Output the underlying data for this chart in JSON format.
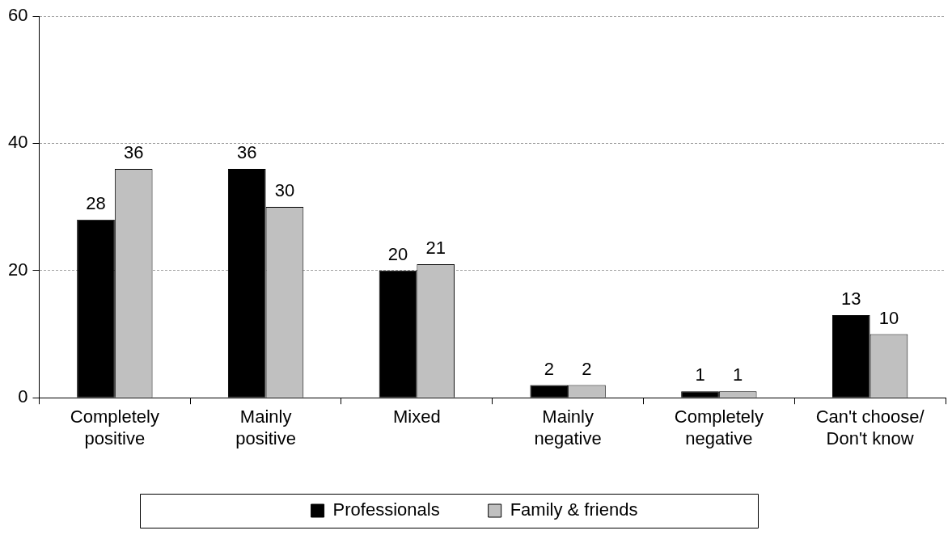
{
  "chart_data": {
    "type": "bar",
    "categories": [
      "Completely positive",
      "Mainly positive",
      "Mixed",
      "Mainly negative",
      "Completely negative",
      "Can't choose/ Don't know"
    ],
    "series": [
      {
        "name": "Professionals",
        "color": "#000000",
        "values": [
          28,
          36,
          20,
          2,
          1,
          13
        ]
      },
      {
        "name": "Family & friends",
        "color": "#c0c0c0",
        "values": [
          36,
          30,
          21,
          2,
          1,
          10
        ]
      }
    ],
    "ylim": [
      0,
      60
    ],
    "yticks": [
      0,
      20,
      40,
      60
    ],
    "grid": "y",
    "legend": "bottom",
    "data_labels": true
  }
}
